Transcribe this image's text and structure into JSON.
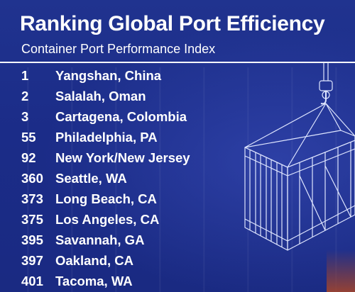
{
  "header": {
    "title": "Ranking Global Port Efficiency",
    "subtitle": "Container Port Performance Index"
  },
  "ports": [
    {
      "rank": "1",
      "name": "Yangshan, China"
    },
    {
      "rank": "2",
      "name": "Salalah, Oman"
    },
    {
      "rank": "3",
      "name": "Cartagena, Colombia"
    },
    {
      "rank": "55",
      "name": "Philadelphia, PA"
    },
    {
      "rank": "92",
      "name": "New York/New Jersey"
    },
    {
      "rank": "360",
      "name": "Seattle, WA"
    },
    {
      "rank": "373",
      "name": "Long Beach, CA"
    },
    {
      "rank": "375",
      "name": "Los Angeles, CA"
    },
    {
      "rank": "395",
      "name": "Savannah, GA"
    },
    {
      "rank": "397",
      "name": "Oakland, CA"
    },
    {
      "rank": "401",
      "name": "Tacoma, WA"
    }
  ],
  "graphic": {
    "icon": "shipping-container-wireframe-icon",
    "line_color": "#dfe6ff"
  },
  "colors": {
    "background": "#1a2b86",
    "text": "#ffffff"
  }
}
